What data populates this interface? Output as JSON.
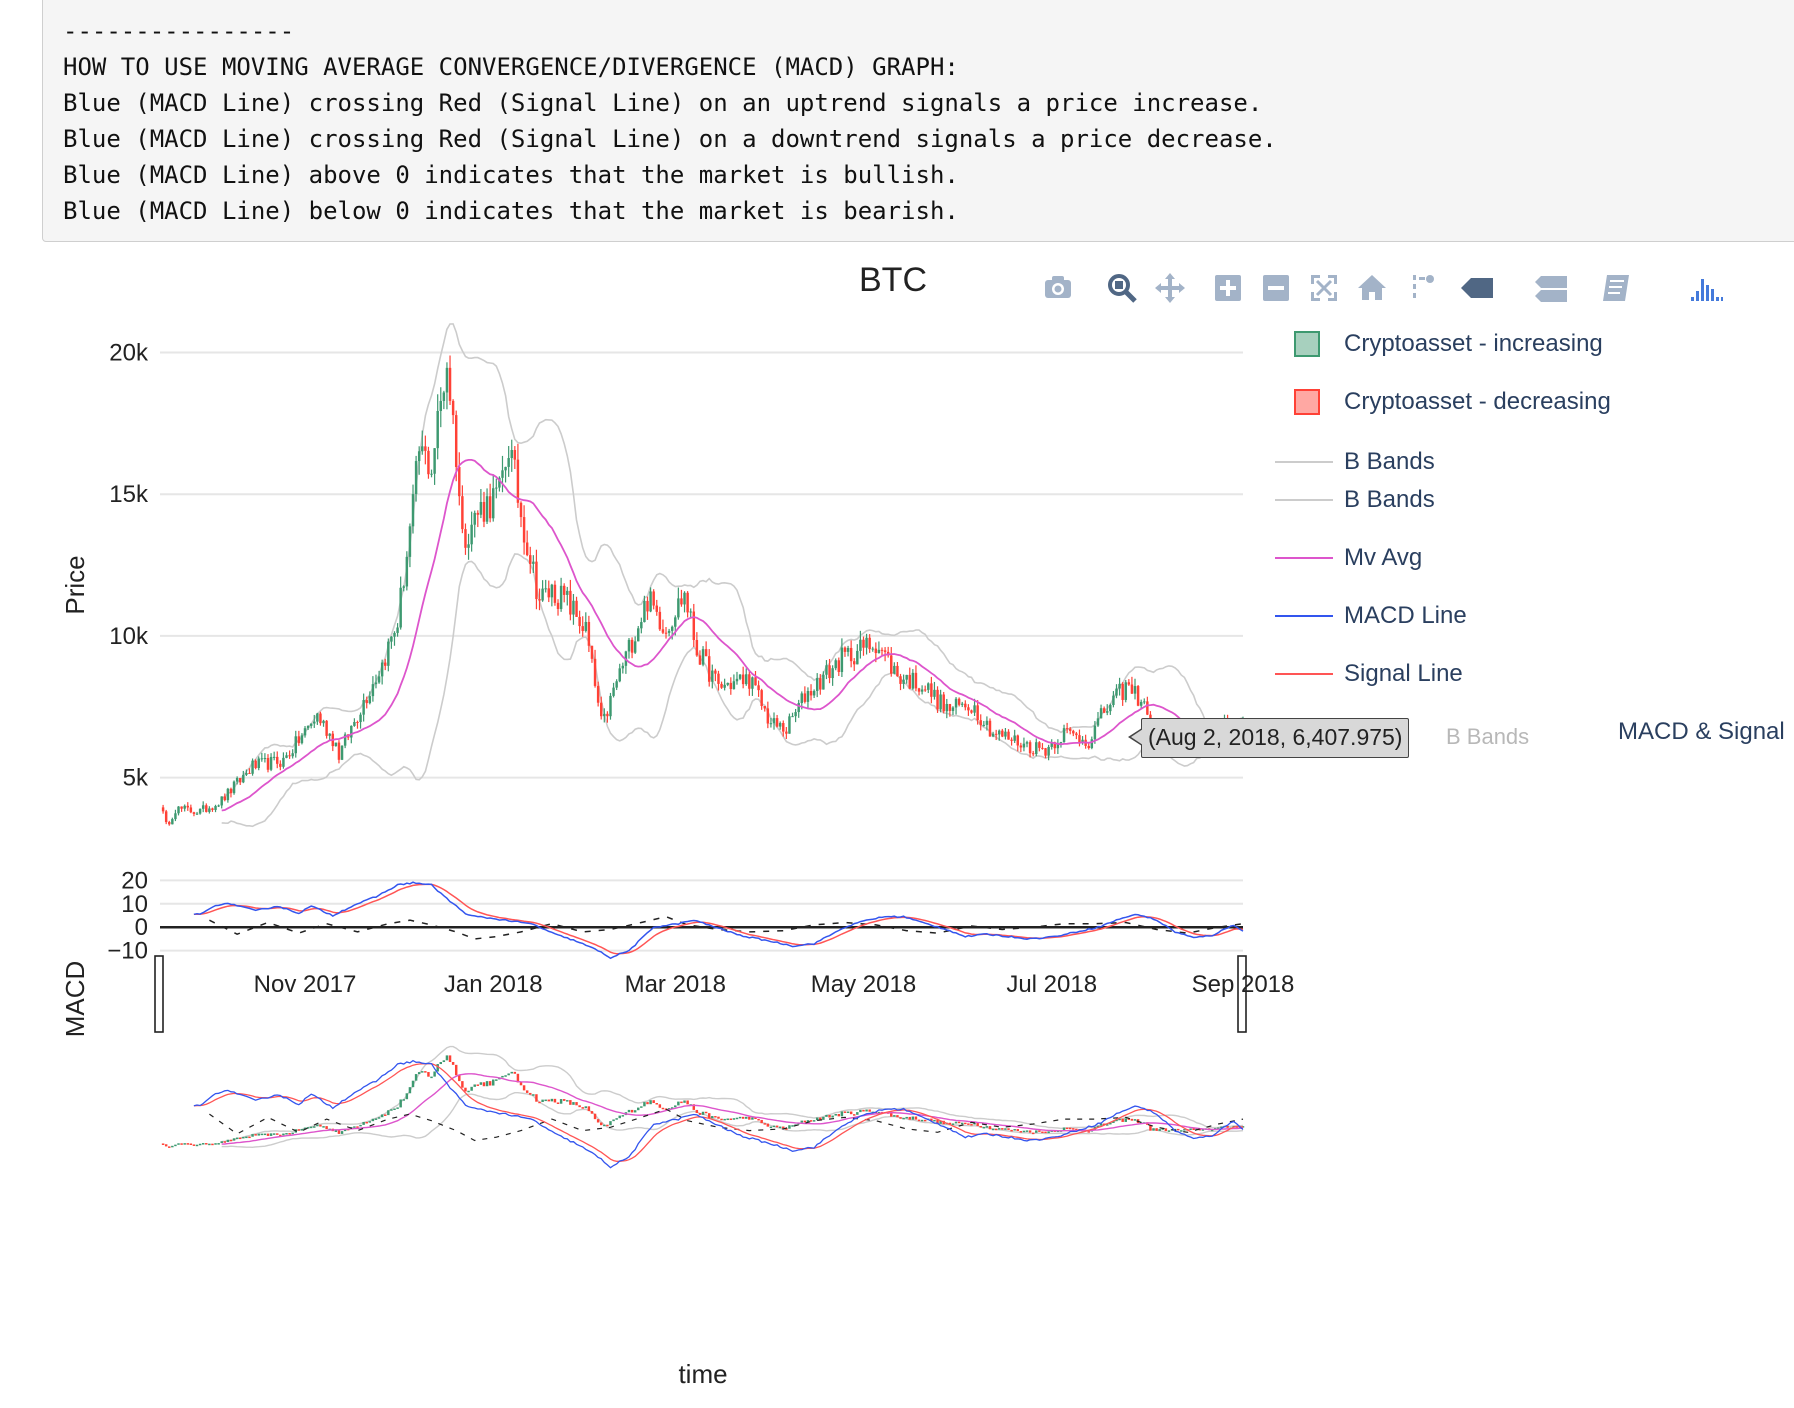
{
  "notes": {
    "lines": [
      "----------------",
      "HOW TO USE MOVING AVERAGE CONVERGENCE/DIVERGENCE (MACD) GRAPH:",
      "Blue (MACD Line) crossing Red (Signal Line) on an uptrend signals a price increase.",
      "Blue (MACD Line) crossing Red (Signal Line) on a downtrend signals a price decrease.",
      "Blue (MACD Line) above 0 indicates that the market is bullish.",
      "Blue (MACD Line) below 0 indicates that the market is bearish."
    ]
  },
  "modebar": {
    "buttons": [
      "camera-icon",
      "zoom-icon",
      "pan-icon",
      "zoom-in-icon",
      "zoom-out-icon",
      "autoscale-icon",
      "reset-axes-icon",
      "spike-lines-icon",
      "hover-closest-icon",
      "hover-compare-icon",
      "edit-in-chart-studio-icon",
      "plotly-logo-icon"
    ],
    "color": "#a3b3c8",
    "active_color": "#506784",
    "logo_color": "#447adb"
  },
  "legend": {
    "items": [
      {
        "label": "Cryptoasset - increasing",
        "kind": "box",
        "color": "#3d9970"
      },
      {
        "label": "Cryptoasset - decreasing",
        "kind": "box",
        "color": "#ff4136"
      },
      {
        "label": "B Bands",
        "kind": "line",
        "color": "#cccccc"
      },
      {
        "label": "B Bands",
        "kind": "line",
        "color": "#cccccc"
      },
      {
        "label": "Mv Avg",
        "kind": "line",
        "color": "#dd55cc"
      },
      {
        "label": "MACD Line",
        "kind": "line",
        "color": "#3355ee"
      },
      {
        "label": "Signal Line",
        "kind": "line",
        "color": "#ff5555"
      },
      {
        "label": "MACD & Signal",
        "kind": "none",
        "color": "#2a3f5f"
      }
    ],
    "overlap_text": "B Bands"
  },
  "tooltip": {
    "text": "(Aug 2, 2018, 6,407.975)"
  },
  "chart_data": {
    "type": "candlestick",
    "title": "BTC",
    "xlabel": "time",
    "price_ylabel": "Price",
    "macd_ylabel": "MACD",
    "x_range": [
      "2017-09-15",
      "2018-09-01"
    ],
    "x_ticks": [
      {
        "date": "2017-11-01",
        "label": "Nov 2017"
      },
      {
        "date": "2018-01-01",
        "label": "Jan 2018"
      },
      {
        "date": "2018-03-01",
        "label": "Mar 2018"
      },
      {
        "date": "2018-05-01",
        "label": "May 2018"
      },
      {
        "date": "2018-07-01",
        "label": "Jul 2018"
      },
      {
        "date": "2018-09-01",
        "label": "Sep 2018"
      }
    ],
    "price_ylim": [
      2800,
      21500
    ],
    "price_yticks": [
      {
        "v": 5000,
        "label": "5k"
      },
      {
        "v": 10000,
        "label": "10k"
      },
      {
        "v": 15000,
        "label": "15k"
      },
      {
        "v": 20000,
        "label": "20k"
      }
    ],
    "macd_ylim": [
      -14,
      21
    ],
    "macd_yticks": [
      {
        "v": 20,
        "label": "20"
      },
      {
        "v": 10,
        "label": "10"
      },
      {
        "v": 0,
        "label": "0"
      },
      {
        "v": -10,
        "label": "−10"
      }
    ],
    "candle_width_days": 1,
    "colors": {
      "increasing": "#3d9970",
      "decreasing": "#ff4136",
      "bbands": "#cccccc",
      "mvavg": "#dd55cc",
      "macd": "#3355ee",
      "signal": "#ff5555",
      "histogram": "#222222",
      "zero": "#222222"
    },
    "price_anchors": [
      [
        "2017-09-15",
        4100
      ],
      [
        "2017-09-17",
        3300
      ],
      [
        "2017-09-20",
        3900
      ],
      [
        "2017-09-28",
        3800
      ],
      [
        "2017-10-05",
        4200
      ],
      [
        "2017-10-15",
        5400
      ],
      [
        "2017-10-25",
        5600
      ],
      [
        "2017-11-05",
        7200
      ],
      [
        "2017-11-11",
        6200
      ],
      [
        "2017-11-12",
        5800
      ],
      [
        "2017-11-20",
        7700
      ],
      [
        "2017-11-26",
        9000
      ],
      [
        "2017-12-01",
        10500
      ],
      [
        "2017-12-06",
        14500
      ],
      [
        "2017-12-08",
        16500
      ],
      [
        "2017-12-12",
        16000
      ],
      [
        "2017-12-17",
        19700
      ],
      [
        "2017-12-20",
        16500
      ],
      [
        "2017-12-22",
        13500
      ],
      [
        "2017-12-28",
        14500
      ],
      [
        "2018-01-03",
        15000
      ],
      [
        "2018-01-06",
        16800
      ],
      [
        "2018-01-10",
        14300
      ],
      [
        "2018-01-16",
        11300
      ],
      [
        "2018-01-20",
        11600
      ],
      [
        "2018-01-25",
        11200
      ],
      [
        "2018-01-31",
        10200
      ],
      [
        "2018-02-05",
        6900
      ],
      [
        "2018-02-06",
        7000
      ],
      [
        "2018-02-10",
        8400
      ],
      [
        "2018-02-20",
        11300
      ],
      [
        "2018-02-26",
        10300
      ],
      [
        "2018-03-04",
        11500
      ],
      [
        "2018-03-08",
        9500
      ],
      [
        "2018-03-15",
        8200
      ],
      [
        "2018-03-25",
        8500
      ],
      [
        "2018-04-01",
        6900
      ],
      [
        "2018-04-06",
        6700
      ],
      [
        "2018-04-12",
        7900
      ],
      [
        "2018-04-24",
        9200
      ],
      [
        "2018-05-05",
        9800
      ],
      [
        "2018-05-12",
        8600
      ],
      [
        "2018-05-20",
        8300
      ],
      [
        "2018-05-28",
        7400
      ],
      [
        "2018-06-05",
        7600
      ],
      [
        "2018-06-12",
        6600
      ],
      [
        "2018-06-24",
        6100
      ],
      [
        "2018-06-29",
        6000
      ],
      [
        "2018-07-05",
        6600
      ],
      [
        "2018-07-13",
        6300
      ],
      [
        "2018-07-18",
        7350
      ],
      [
        "2018-07-25",
        8200
      ],
      [
        "2018-07-31",
        7700
      ],
      [
        "2018-08-02",
        6407.975
      ],
      [
        "2018-08-14",
        6300
      ],
      [
        "2018-08-25",
        6700
      ],
      [
        "2018-08-31",
        7050
      ]
    ],
    "macd_anchors": [
      [
        "2017-09-15",
        null
      ],
      [
        "2017-09-26",
        5.5
      ],
      [
        "2017-09-29",
        6
      ],
      [
        "2017-10-03",
        9.5
      ],
      [
        "2017-10-08",
        10
      ],
      [
        "2017-10-16",
        7
      ],
      [
        "2017-10-23",
        9
      ],
      [
        "2017-10-30",
        6
      ],
      [
        "2017-11-03",
        9
      ],
      [
        "2017-11-10",
        5
      ],
      [
        "2017-11-17",
        9.5
      ],
      [
        "2017-11-24",
        13
      ],
      [
        "2017-12-01",
        18
      ],
      [
        "2017-12-06",
        19
      ],
      [
        "2017-12-12",
        18
      ],
      [
        "2017-12-18",
        11
      ],
      [
        "2017-12-24",
        5
      ],
      [
        "2017-12-30",
        4
      ],
      [
        "2018-01-05",
        3
      ],
      [
        "2018-01-14",
        1.2
      ],
      [
        "2018-01-21",
        -3
      ],
      [
        "2018-01-28",
        -6
      ],
      [
        "2018-02-04",
        -10
      ],
      [
        "2018-02-08",
        -13
      ],
      [
        "2018-02-14",
        -10
      ],
      [
        "2018-02-22",
        0
      ],
      [
        "2018-03-02",
        1.5
      ],
      [
        "2018-03-07",
        3
      ],
      [
        "2018-03-14",
        0
      ],
      [
        "2018-03-22",
        -3.5
      ],
      [
        "2018-04-01",
        -6
      ],
      [
        "2018-04-08",
        -8
      ],
      [
        "2018-04-15",
        -7
      ],
      [
        "2018-04-25",
        0
      ],
      [
        "2018-05-02",
        3
      ],
      [
        "2018-05-08",
        4.5
      ],
      [
        "2018-05-14",
        4.5
      ],
      [
        "2018-05-20",
        2
      ],
      [
        "2018-05-28",
        -1
      ],
      [
        "2018-06-03",
        -4
      ],
      [
        "2018-06-10",
        -3
      ],
      [
        "2018-06-17",
        -4
      ],
      [
        "2018-06-24",
        -5
      ],
      [
        "2018-07-02",
        -4
      ],
      [
        "2018-07-09",
        -2
      ],
      [
        "2018-07-16",
        0
      ],
      [
        "2018-07-24",
        4
      ],
      [
        "2018-07-29",
        5.5
      ],
      [
        "2018-08-04",
        3
      ],
      [
        "2018-08-10",
        -2
      ],
      [
        "2018-08-16",
        -4.5
      ],
      [
        "2018-08-22",
        -3.5
      ],
      [
        "2018-08-29",
        1
      ],
      [
        "2018-09-01",
        -1.5
      ]
    ],
    "histogram_anchors": [
      [
        "2017-10-01",
        3
      ],
      [
        "2017-10-10",
        -3
      ],
      [
        "2017-10-20",
        2
      ],
      [
        "2017-10-30",
        -2.5
      ],
      [
        "2017-11-08",
        1.5
      ],
      [
        "2017-11-18",
        -2
      ],
      [
        "2017-11-28",
        1.5
      ],
      [
        "2017-12-05",
        3
      ],
      [
        "2017-12-12",
        1
      ],
      [
        "2017-12-20",
        -2
      ],
      [
        "2017-12-26",
        -5
      ],
      [
        "2018-01-02",
        -4
      ],
      [
        "2018-01-10",
        -2
      ],
      [
        "2018-01-20",
        1.5
      ],
      [
        "2018-01-30",
        -2
      ],
      [
        "2018-02-08",
        -1
      ],
      [
        "2018-02-18",
        2
      ],
      [
        "2018-02-26",
        4.5
      ],
      [
        "2018-03-05",
        1
      ],
      [
        "2018-03-15",
        -1
      ],
      [
        "2018-03-25",
        -2
      ],
      [
        "2018-04-05",
        -1.5
      ],
      [
        "2018-04-15",
        1
      ],
      [
        "2018-04-25",
        2
      ],
      [
        "2018-05-05",
        1
      ],
      [
        "2018-05-15",
        -1.5
      ],
      [
        "2018-05-25",
        -2.5
      ],
      [
        "2018-06-05",
        0.5
      ],
      [
        "2018-06-15",
        -1
      ],
      [
        "2018-06-25",
        0
      ],
      [
        "2018-07-05",
        1.5
      ],
      [
        "2018-07-15",
        1.5
      ],
      [
        "2018-07-25",
        2
      ],
      [
        "2018-08-04",
        -1
      ],
      [
        "2018-08-14",
        -2.5
      ],
      [
        "2018-08-24",
        0
      ],
      [
        "2018-09-01",
        1.5
      ]
    ],
    "tooltip_point": {
      "date": "2018-08-02",
      "value": 6407.975
    }
  }
}
